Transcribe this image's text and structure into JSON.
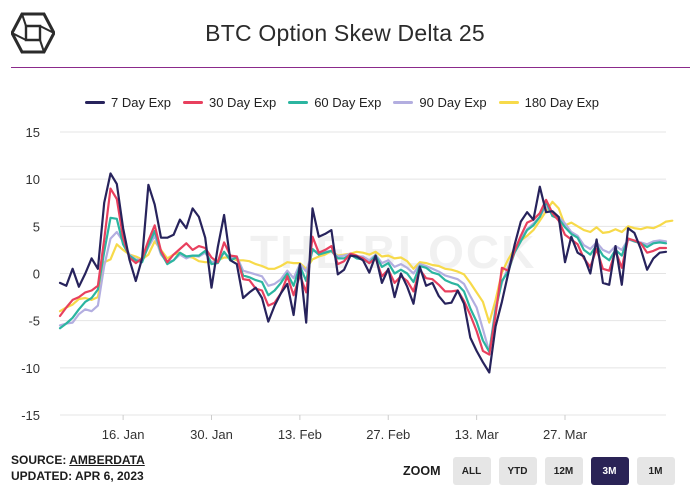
{
  "header": {
    "title": "BTC Option Skew Delta 25",
    "logo_icon": "the-block-cube-logo-icon",
    "rule_color": "#8b2a8b"
  },
  "watermark": "THE BLOCK",
  "legend": [
    {
      "label": "7 Day Exp",
      "color": "#27235c"
    },
    {
      "label": "30 Day Exp",
      "color": "#e8405e"
    },
    {
      "label": "60 Day Exp",
      "color": "#2bb5a0"
    },
    {
      "label": "90 Day Exp",
      "color": "#b3aee0"
    },
    {
      "label": "180 Day Exp",
      "color": "#f7da4a"
    }
  ],
  "chart_data": {
    "type": "line",
    "title": "BTC Option Skew Delta 25",
    "xlabel": "",
    "ylabel": "",
    "ylim": [
      -15,
      15
    ],
    "yticks": [
      15,
      10,
      5,
      0,
      -5,
      -10,
      -15
    ],
    "x_start": "2023-01-06",
    "xticks": [
      {
        "label": "16. Jan",
        "x": "2023-01-16"
      },
      {
        "label": "30. Jan",
        "x": "2023-01-30"
      },
      {
        "label": "13. Feb",
        "x": "2023-02-13"
      },
      {
        "label": "27. Feb",
        "x": "2023-02-27"
      },
      {
        "label": "13. Mar",
        "x": "2023-03-13"
      },
      {
        "label": "27. Mar",
        "x": "2023-03-27"
      }
    ],
    "grid": "horizontal",
    "legend_position": "top",
    "series": [
      {
        "name": "7 Day Exp",
        "color": "#27235c",
        "values": [
          -1.0,
          -1.3,
          0.5,
          -1.4,
          0.0,
          1.6,
          0.5,
          7.5,
          10.6,
          9.5,
          4.8,
          1.5,
          -0.8,
          1.6,
          9.4,
          7.3,
          3.8,
          3.8,
          4.1,
          5.7,
          4.8,
          6.9,
          6.0,
          3.8,
          -1.5,
          2.8,
          6.2,
          1.4,
          1.0,
          -2.6,
          -2.0,
          -1.5,
          -2.6,
          -5.1,
          -3.4,
          -2.1,
          -1.1,
          -4.4,
          1.0,
          -5.2,
          6.9,
          3.9,
          4.2,
          4.6,
          -0.1,
          0.4,
          1.9,
          1.8,
          1.4,
          0.1,
          1.9,
          -1.0,
          0.5,
          -2.5,
          0.0,
          -1.4,
          -3.2,
          0.7,
          -1.3,
          -1.0,
          -2.4,
          -3.2,
          -3.1,
          -1.8,
          -3.2,
          -6.8,
          -8.2,
          -9.4,
          -10.5,
          -5.6,
          -3.0,
          0.0,
          3.0,
          5.5,
          6.5,
          5.7,
          9.2,
          6.5,
          6.6,
          6.0,
          1.2,
          3.9,
          2.2,
          1.8,
          0.0,
          3.6,
          -1.0,
          -1.2,
          2.9,
          -1.2,
          4.8,
          4.3,
          2.6,
          0.4,
          1.6,
          2.2,
          2.3
        ]
      },
      {
        "name": "30 Day Exp",
        "color": "#e8405e",
        "values": [
          -4.5,
          -3.6,
          -2.8,
          -2.5,
          -2.0,
          -1.8,
          -1.3,
          3.6,
          9.0,
          7.9,
          3.8,
          1.7,
          1.1,
          1.6,
          3.5,
          5.1,
          2.4,
          1.2,
          2.0,
          2.6,
          3.2,
          2.5,
          2.9,
          2.7,
          1.7,
          1.2,
          3.3,
          1.9,
          1.8,
          -0.6,
          -0.7,
          -1.6,
          -1.8,
          -3.4,
          -3.1,
          -2.1,
          -0.3,
          -2.3,
          -0.2,
          -2.0,
          3.9,
          2.2,
          2.5,
          2.9,
          1.0,
          1.3,
          2.1,
          1.9,
          1.6,
          1.1,
          1.6,
          -0.3,
          0.4,
          -1.0,
          -0.3,
          -0.8,
          -1.9,
          0.4,
          -0.5,
          -0.6,
          -1.2,
          -1.9,
          -1.9,
          -1.8,
          -2.9,
          -4.4,
          -6.1,
          -8.2,
          -8.6,
          -4.4,
          0.6,
          0.3,
          2.4,
          4.0,
          5.4,
          5.7,
          6.4,
          7.8,
          6.4,
          5.6,
          4.1,
          3.6,
          3.1,
          1.6,
          0.7,
          2.6,
          0.5,
          0.3,
          2.4,
          0.6,
          3.7,
          3.5,
          3.2,
          2.2,
          2.4,
          2.7,
          2.7
        ]
      },
      {
        "name": "60 Day Exp",
        "color": "#2bb5a0",
        "values": [
          -5.8,
          -5.3,
          -4.7,
          -3.8,
          -3.0,
          -2.6,
          -1.7,
          2.3,
          5.9,
          5.8,
          3.1,
          1.9,
          1.4,
          1.2,
          3.0,
          4.5,
          2.2,
          1.0,
          1.4,
          2.2,
          1.8,
          1.9,
          1.9,
          2.4,
          1.0,
          1.1,
          2.3,
          1.4,
          1.7,
          -0.2,
          -0.4,
          -0.7,
          -0.9,
          -2.3,
          -1.8,
          -1.0,
          0.0,
          -1.3,
          0.8,
          -0.8,
          2.6,
          2.0,
          2.2,
          2.4,
          1.6,
          1.6,
          2.0,
          1.6,
          1.5,
          1.1,
          1.9,
          0.7,
          1.1,
          0.0,
          0.4,
          0.0,
          -0.9,
          0.8,
          0.6,
          0.1,
          -0.1,
          -0.7,
          -1.0,
          -1.2,
          -1.9,
          -3.7,
          -5.1,
          -7.1,
          -8.3,
          -3.9,
          -0.8,
          0.2,
          2.2,
          3.4,
          4.6,
          5.1,
          6.0,
          7.6,
          6.1,
          5.8,
          4.9,
          4.2,
          3.8,
          2.5,
          2.0,
          3.0,
          1.9,
          1.4,
          2.5,
          1.9,
          3.7,
          3.4,
          3.2,
          2.8,
          3.2,
          3.3,
          3.2
        ]
      },
      {
        "name": "90 Day Exp",
        "color": "#b3aee0",
        "values": [
          -5.5,
          -5.3,
          -5.2,
          -4.3,
          -3.8,
          -4.0,
          -3.4,
          0.8,
          3.7,
          4.4,
          3.4,
          2.0,
          1.5,
          1.4,
          2.8,
          4.0,
          2.0,
          1.2,
          1.4,
          2.0,
          1.6,
          1.9,
          1.8,
          2.2,
          1.2,
          1.3,
          2.2,
          1.6,
          1.8,
          0.3,
          0.1,
          -0.1,
          -0.3,
          -1.3,
          -1.1,
          -0.6,
          0.3,
          -0.5,
          1.0,
          0.2,
          2.4,
          2.3,
          2.3,
          2.4,
          1.8,
          1.9,
          2.1,
          1.8,
          1.8,
          1.4,
          2.0,
          1.1,
          1.4,
          0.7,
          1.0,
          0.6,
          0.0,
          1.0,
          0.8,
          0.5,
          0.2,
          -0.2,
          -0.4,
          -0.6,
          -1.1,
          -2.4,
          -3.6,
          -5.9,
          -8.3,
          -3.6,
          -1.0,
          0.7,
          2.5,
          3.7,
          4.7,
          5.3,
          6.0,
          7.2,
          6.2,
          6.0,
          5.3,
          4.4,
          4.0,
          3.0,
          2.6,
          3.3,
          2.5,
          2.2,
          2.9,
          2.5,
          3.6,
          3.4,
          3.3,
          3.1,
          3.4,
          3.5,
          3.4
        ]
      },
      {
        "name": "180 Day Exp",
        "color": "#f7da4a",
        "values": [
          -4.0,
          -3.6,
          -3.3,
          -2.7,
          -2.6,
          -2.8,
          -2.5,
          1.2,
          1.5,
          3.1,
          2.5,
          2.0,
          1.8,
          1.5,
          2.0,
          3.4,
          2.5,
          1.6,
          2.0,
          2.2,
          1.8,
          1.7,
          1.3,
          1.2,
          1.2,
          1.4,
          1.7,
          1.7,
          1.4,
          1.4,
          1.3,
          1.0,
          0.8,
          0.5,
          0.5,
          0.8,
          1.2,
          1.1,
          1.1,
          0.5,
          1.5,
          1.8,
          2.0,
          2.4,
          1.9,
          2.0,
          2.1,
          2.3,
          2.2,
          2.0,
          2.3,
          1.8,
          1.9,
          1.6,
          1.7,
          1.3,
          0.5,
          1.2,
          1.1,
          0.9,
          0.8,
          0.5,
          0.4,
          0.2,
          -0.1,
          -1.0,
          -2.0,
          -3.0,
          -5.2,
          -2.8,
          0.1,
          1.5,
          2.6,
          3.5,
          4.0,
          4.6,
          5.6,
          6.6,
          7.6,
          6.9,
          5.1,
          5.4,
          5.0,
          4.6,
          4.4,
          4.9,
          4.3,
          4.4,
          4.7,
          4.4,
          5.0,
          4.8,
          4.7,
          4.9,
          4.8,
          5.1,
          5.5,
          5.6
        ]
      }
    ]
  },
  "footer": {
    "source_prefix": "SOURCE: ",
    "source_link": "AMBERDATA",
    "updated": "UPDATED: APR 6, 2023"
  },
  "zoom": {
    "label": "ZOOM",
    "buttons": [
      {
        "label": "ALL",
        "active": false
      },
      {
        "label": "YTD",
        "active": false
      },
      {
        "label": "12M",
        "active": false
      },
      {
        "label": "3M",
        "active": true
      },
      {
        "label": "1M",
        "active": false
      }
    ]
  }
}
